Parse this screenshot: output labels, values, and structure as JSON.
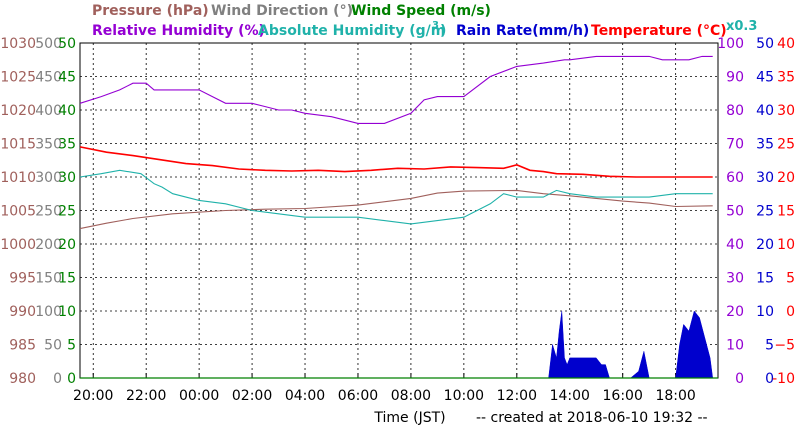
{
  "chart_data": {
    "type": "line",
    "legend": [
      {
        "label": "Pressure (hPa)",
        "color": "#a0605c"
      },
      {
        "label": "Wind Direction (°)",
        "color": "#808080"
      },
      {
        "label": "Wind Speed (m/s)",
        "color": "#008000"
      },
      {
        "label": "Relative Humidity (%)",
        "color": "#9400d3"
      },
      {
        "label": "Absolute Humidity (g/m",
        "color": "#20b2aa"
      },
      {
        "label": "Rain Rate(mm/h)",
        "color": "#0000cd"
      },
      {
        "label": "Temperature (°C)",
        "color": "#ff0000"
      }
    ],
    "legend_sup": "3",
    "legend_sup_close": ")",
    "scale_note": "x0.3",
    "xlabel": "Time (JST)",
    "created": "-- created at 2018-06-10 19:32 --",
    "x_ticks": [
      "20:00",
      "22:00",
      "00:00",
      "02:00",
      "04:00",
      "06:00",
      "08:00",
      "10:00",
      "12:00",
      "14:00",
      "16:00",
      "18:00"
    ],
    "x_range_hours": [
      -0.5,
      23.6
    ],
    "axes": {
      "pressure": {
        "color": "#a0605c",
        "min": 980,
        "max": 1030,
        "ticks": [
          "980",
          "985",
          "990",
          "995",
          "1000",
          "1005",
          "1010",
          "1015",
          "1020",
          "1025",
          "1030"
        ]
      },
      "wind_direction": {
        "color": "#808080",
        "min": 0,
        "max": 500,
        "ticks": [
          "0",
          "50",
          "100",
          "150",
          "200",
          "250",
          "300",
          "350",
          "400",
          "450",
          "500"
        ]
      },
      "wind_speed": {
        "color": "#008000",
        "min": 0,
        "max": 50,
        "ticks": [
          "0",
          "5",
          "10",
          "15",
          "20",
          "25",
          "30",
          "35",
          "40",
          "45",
          "50"
        ]
      },
      "relative_humidity": {
        "color": "#9400d3",
        "min": 0,
        "max": 100,
        "ticks": [
          "0",
          "10",
          "20",
          "30",
          "40",
          "50",
          "60",
          "70",
          "80",
          "90",
          "100"
        ]
      },
      "rain_rate": {
        "color": "#0000cd",
        "min": 0,
        "max": 50,
        "ticks": [
          "0",
          "5",
          "10",
          "15",
          "20",
          "25",
          "30",
          "35",
          "40",
          "45",
          "50"
        ]
      },
      "temperature": {
        "color": "#ff0000",
        "min": -10,
        "max": 40,
        "ticks": [
          "-10",
          "−5",
          "0",
          "5",
          "10",
          "15",
          "20",
          "25",
          "30",
          "35",
          "40"
        ]
      }
    },
    "series": [
      {
        "name": "Pressure (hPa)",
        "color": "#a0605c",
        "axis": "pressure",
        "x": [
          -0.5,
          0.5,
          1.5,
          3,
          5,
          6.5,
          8,
          10,
          12,
          13,
          14,
          16,
          17,
          18,
          19,
          20,
          21,
          22,
          23.4
        ],
        "y": [
          1002.3,
          1003.1,
          1003.8,
          1004.5,
          1005,
          1005.2,
          1005.3,
          1005.8,
          1006.8,
          1007.6,
          1007.9,
          1008,
          1007.5,
          1007.2,
          1006.8,
          1006.4,
          1006.1,
          1005.6,
          1005.7
        ]
      },
      {
        "name": "Relative Humidity (%)",
        "color": "#9400d3",
        "axis": "relative_humidity",
        "x": [
          -0.5,
          0.3,
          1,
          1.5,
          2,
          2.3,
          2.6,
          3.5,
          4,
          4.5,
          5,
          6,
          6.5,
          7,
          7.5,
          8,
          9,
          10,
          11,
          12,
          12.5,
          13,
          13.3,
          14,
          15,
          16,
          17,
          17.8,
          18,
          19,
          19.3,
          20,
          21,
          21.5,
          22,
          22.5,
          23,
          23.4
        ],
        "y": [
          82,
          84,
          86,
          88,
          88,
          86,
          86,
          86,
          86,
          84,
          82,
          82,
          81,
          80,
          80,
          79,
          78,
          76,
          76,
          79,
          83,
          84,
          84,
          84,
          90,
          93,
          94,
          95,
          95,
          96,
          96,
          96,
          96,
          95,
          95,
          95,
          96,
          96
        ]
      },
      {
        "name": "Absolute Humidity (g/m3)",
        "color": "#20b2aa",
        "axis": "relative_humidity",
        "x": [
          -0.5,
          0.3,
          1,
          1.8,
          2.3,
          2.6,
          3,
          4,
          5,
          6,
          7,
          8,
          9,
          10,
          11,
          12,
          13,
          14,
          15,
          15.5,
          16,
          17,
          17.5,
          18,
          19,
          20,
          21,
          22,
          23.4
        ],
        "y": [
          60,
          61,
          62,
          61,
          58,
          57,
          55,
          53,
          52,
          50,
          49,
          48,
          48,
          48,
          47,
          46,
          47,
          48,
          52,
          55,
          54,
          54,
          56,
          55,
          54,
          54,
          54,
          55,
          55
        ]
      },
      {
        "name": "Temperature (°C)",
        "color": "#ff0000",
        "axis": "temperature",
        "x": [
          -0.5,
          0.5,
          1.5,
          2.5,
          3.5,
          4.5,
          5.5,
          6.5,
          7.5,
          8.5,
          9.5,
          10.5,
          11.5,
          12.5,
          13.5,
          14.5,
          15.5,
          16,
          16.5,
          17,
          17.5,
          18.5,
          19.5,
          20.5,
          21.5,
          22.5,
          23.4
        ],
        "y": [
          24.5,
          23.7,
          23.2,
          22.6,
          22.0,
          21.7,
          21.2,
          21.0,
          20.9,
          21.0,
          20.8,
          21.0,
          21.3,
          21.2,
          21.5,
          21.4,
          21.3,
          21.8,
          21.0,
          20.8,
          20.5,
          20.4,
          20.1,
          20.0,
          20.0,
          20.0,
          20.0
        ]
      },
      {
        "name": "Rain Rate(mm/h)",
        "color": "#0000cd",
        "axis": "rain_rate",
        "x": [
          17.2,
          17.35,
          17.5,
          17.6,
          17.7,
          17.8,
          17.9,
          18.0,
          18.5,
          19.0,
          19.2,
          19.35,
          19.5,
          19.6,
          19.8,
          20.3,
          20.6,
          20.8,
          21.0,
          21.2,
          21.5,
          22.0,
          22.15,
          22.3,
          22.5,
          22.7,
          22.9,
          23.1,
          23.3,
          23.4
        ],
        "y": [
          0,
          5,
          3,
          7,
          10,
          3,
          2,
          3,
          3,
          3,
          2,
          2,
          0,
          0,
          0,
          0,
          1,
          4,
          0,
          0,
          0,
          0,
          5,
          8,
          7,
          10,
          9,
          6,
          3,
          0
        ]
      }
    ]
  }
}
